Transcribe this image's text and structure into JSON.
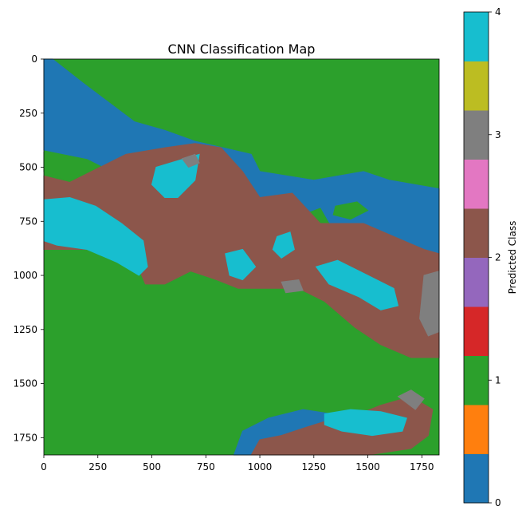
{
  "chart_data": {
    "type": "heatmap",
    "title": "CNN Classification Map",
    "xlabel": "",
    "ylabel": "",
    "x_range": [
      0,
      1830
    ],
    "y_range": [
      0,
      1830
    ],
    "y_inverted": true,
    "x_ticks": [
      "0",
      "250",
      "500",
      "750",
      "1000",
      "1250",
      "1500",
      "1750"
    ],
    "y_ticks": [
      "0",
      "250",
      "500",
      "750",
      "1000",
      "1250",
      "1500",
      "1750"
    ],
    "grid": false,
    "colorbar": {
      "label": "Predicted Class",
      "range": [
        0,
        4
      ],
      "ticks": [
        "0",
        "1",
        "2",
        "3",
        "4"
      ],
      "colors": [
        "#1f77b4",
        "#ff7f0e",
        "#2ca02c",
        "#d62728",
        "#9467bd",
        "#8c564b",
        "#e377c2",
        "#7f7f7f",
        "#bcbd22",
        "#17becf"
      ]
    },
    "class_colors": {
      "0": "#1f77b4",
      "1": "#2ca02c",
      "2": "#8c564b",
      "3": "#7f7f7f",
      "4": "#17becf"
    },
    "background_class": 1,
    "regions": [
      {
        "class": 0,
        "points": [
          [
            0,
            0
          ],
          [
            40,
            0
          ],
          [
            180,
            110
          ],
          [
            420,
            290
          ],
          [
            560,
            330
          ],
          [
            700,
            380
          ],
          [
            960,
            440
          ],
          [
            1000,
            520
          ],
          [
            1250,
            560
          ],
          [
            1480,
            520
          ],
          [
            1600,
            560
          ],
          [
            1830,
            600
          ],
          [
            1830,
            940
          ],
          [
            1600,
            960
          ],
          [
            1400,
            900
          ],
          [
            1000,
            720
          ],
          [
            800,
            620
          ],
          [
            560,
            600
          ],
          [
            400,
            560
          ],
          [
            200,
            460
          ],
          [
            0,
            420
          ]
        ]
      },
      {
        "class": 0,
        "points": [
          [
            880,
            1830
          ],
          [
            920,
            1720
          ],
          [
            1040,
            1660
          ],
          [
            1200,
            1620
          ],
          [
            1330,
            1640
          ],
          [
            1420,
            1660
          ],
          [
            1480,
            1700
          ],
          [
            1480,
            1830
          ]
        ]
      },
      {
        "class": 1,
        "points": [
          [
            0,
            520
          ],
          [
            0,
            430
          ],
          [
            160,
            470
          ],
          [
            240,
            520
          ],
          [
            200,
            560
          ],
          [
            100,
            560
          ]
        ]
      },
      {
        "class": 1,
        "points": [
          [
            560,
            430
          ],
          [
            680,
            400
          ],
          [
            760,
            430
          ],
          [
            700,
            470
          ],
          [
            600,
            470
          ]
        ]
      },
      {
        "class": 1,
        "points": [
          [
            1350,
            680
          ],
          [
            1450,
            660
          ],
          [
            1500,
            700
          ],
          [
            1420,
            740
          ],
          [
            1340,
            720
          ]
        ]
      },
      {
        "class": 1,
        "points": [
          [
            1200,
            720
          ],
          [
            1280,
            690
          ],
          [
            1320,
            760
          ],
          [
            1240,
            780
          ]
        ]
      },
      {
        "class": 2,
        "points": [
          [
            0,
            540
          ],
          [
            120,
            570
          ],
          [
            260,
            500
          ],
          [
            380,
            440
          ],
          [
            560,
            410
          ],
          [
            700,
            390
          ],
          [
            820,
            410
          ],
          [
            920,
            520
          ],
          [
            1000,
            640
          ],
          [
            1150,
            620
          ],
          [
            1280,
            760
          ],
          [
            1480,
            760
          ],
          [
            1620,
            820
          ],
          [
            1760,
            880
          ],
          [
            1830,
            900
          ],
          [
            1830,
            1380
          ],
          [
            1700,
            1380
          ],
          [
            1560,
            1320
          ],
          [
            1440,
            1240
          ],
          [
            1300,
            1120
          ],
          [
            1180,
            1060
          ],
          [
            1040,
            1060
          ],
          [
            900,
            1060
          ],
          [
            800,
            1020
          ],
          [
            680,
            980
          ],
          [
            560,
            1040
          ],
          [
            470,
            1040
          ],
          [
            420,
            920
          ],
          [
            300,
            880
          ],
          [
            180,
            880
          ],
          [
            40,
            880
          ],
          [
            0,
            880
          ]
        ]
      },
      {
        "class": 2,
        "points": [
          [
            960,
            1830
          ],
          [
            1000,
            1760
          ],
          [
            1100,
            1740
          ],
          [
            1220,
            1700
          ],
          [
            1350,
            1660
          ],
          [
            1460,
            1640
          ],
          [
            1560,
            1600
          ],
          [
            1700,
            1560
          ],
          [
            1800,
            1620
          ],
          [
            1780,
            1740
          ],
          [
            1700,
            1800
          ],
          [
            1500,
            1830
          ]
        ]
      },
      {
        "class": 4,
        "points": [
          [
            0,
            650
          ],
          [
            120,
            640
          ],
          [
            240,
            680
          ],
          [
            360,
            760
          ],
          [
            460,
            840
          ],
          [
            480,
            960
          ],
          [
            440,
            1000
          ],
          [
            340,
            940
          ],
          [
            200,
            880
          ],
          [
            60,
            860
          ],
          [
            0,
            840
          ]
        ]
      },
      {
        "class": 4,
        "points": [
          [
            520,
            500
          ],
          [
            620,
            470
          ],
          [
            720,
            440
          ],
          [
            700,
            560
          ],
          [
            620,
            640
          ],
          [
            560,
            640
          ],
          [
            500,
            580
          ]
        ]
      },
      {
        "class": 4,
        "points": [
          [
            840,
            900
          ],
          [
            920,
            880
          ],
          [
            980,
            960
          ],
          [
            920,
            1020
          ],
          [
            860,
            1000
          ]
        ]
      },
      {
        "class": 4,
        "points": [
          [
            1260,
            960
          ],
          [
            1360,
            930
          ],
          [
            1480,
            990
          ],
          [
            1620,
            1060
          ],
          [
            1640,
            1140
          ],
          [
            1560,
            1160
          ],
          [
            1460,
            1100
          ],
          [
            1320,
            1040
          ]
        ]
      },
      {
        "class": 4,
        "points": [
          [
            1080,
            820
          ],
          [
            1140,
            800
          ],
          [
            1160,
            880
          ],
          [
            1100,
            920
          ],
          [
            1060,
            880
          ]
        ]
      },
      {
        "class": 4,
        "points": [
          [
            1300,
            1640
          ],
          [
            1420,
            1620
          ],
          [
            1560,
            1630
          ],
          [
            1680,
            1660
          ],
          [
            1660,
            1720
          ],
          [
            1520,
            1740
          ],
          [
            1380,
            1720
          ],
          [
            1300,
            1690
          ]
        ]
      },
      {
        "class": 3,
        "points": [
          [
            1760,
            1000
          ],
          [
            1830,
            980
          ],
          [
            1830,
            1260
          ],
          [
            1780,
            1280
          ],
          [
            1740,
            1200
          ]
        ]
      },
      {
        "class": 3,
        "points": [
          [
            1640,
            1560
          ],
          [
            1700,
            1530
          ],
          [
            1760,
            1570
          ],
          [
            1720,
            1620
          ]
        ]
      },
      {
        "class": 3,
        "points": [
          [
            640,
            460
          ],
          [
            700,
            440
          ],
          [
            720,
            480
          ],
          [
            670,
            500
          ]
        ]
      },
      {
        "class": 3,
        "points": [
          [
            1100,
            1030
          ],
          [
            1180,
            1020
          ],
          [
            1200,
            1070
          ],
          [
            1120,
            1080
          ]
        ]
      }
    ]
  }
}
